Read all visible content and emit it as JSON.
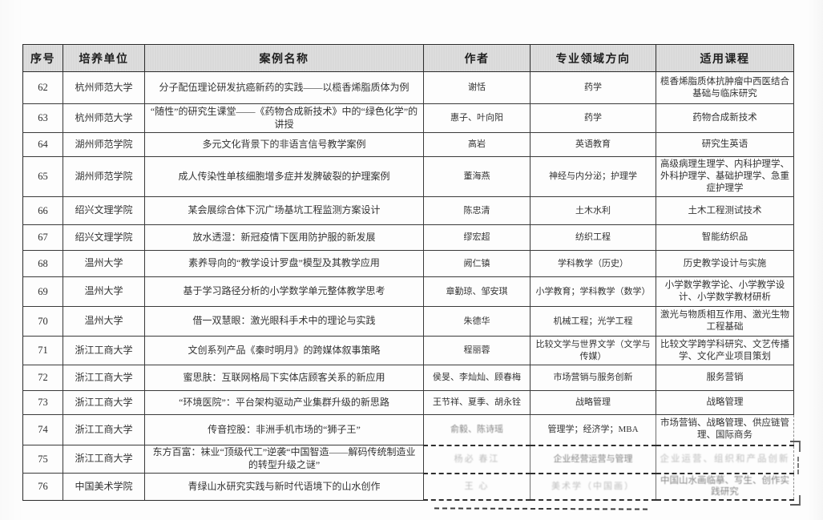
{
  "table": {
    "columns": [
      "序号",
      "培养单位",
      "案例名称",
      "作者",
      "专业领域方向",
      "适用课程"
    ],
    "rows": [
      {
        "num": "62",
        "unit": "杭州师范大学",
        "name": "分子配伍理论研发抗癌新药的实践——以榄香烯脂质体为例",
        "author": "谢恬",
        "field": "药学",
        "courses": "榄香烯脂质体抗肿瘤中西医结合基础与临床研究"
      },
      {
        "num": "63",
        "unit": "杭州师范大学",
        "name": "“随性”的研究生课堂——《药物合成新技术》中的“绿色化学”的讲授",
        "author": "惠子、叶向阳",
        "field": "药学",
        "courses": "药物合成新技术"
      },
      {
        "num": "64",
        "unit": "湖州师范学院",
        "name": "多元文化背景下的非语言信号教学案例",
        "author": "高岩",
        "field": "英语教育",
        "courses": "研究生英语"
      },
      {
        "num": "65",
        "unit": "湖州师范学院",
        "name": "成人传染性单核细胞增多症并发脾破裂的护理案例",
        "author": "董海燕",
        "field": "神经与内分泌；护理学",
        "courses": "高级病理生理学、内科护理学、外科护理学、基础护理学、急重症护理学"
      },
      {
        "num": "66",
        "unit": "绍兴文理学院",
        "name": "某会展综合体下沉广场基坑工程监测方案设计",
        "author": "陈忠清",
        "field": "土木水利",
        "courses": "土木工程测试技术"
      },
      {
        "num": "67",
        "unit": "绍兴文理学院",
        "name": "放水透湿：新冠疫情下医用防护服的新发展",
        "author": "缪宏超",
        "field": "纺织工程",
        "courses": "智能纺织品"
      },
      {
        "num": "68",
        "unit": "温州大学",
        "name": "素养导向的“教学设计罗盘”模型及其教学应用",
        "author": "阙仁镇",
        "field": "学科教学（历史）",
        "courses": "历史教学设计与实施"
      },
      {
        "num": "69",
        "unit": "温州大学",
        "name": "基于学习路径分析的小学数学单元整体教学思考",
        "author": "章勤琼、邹安琪",
        "field": "小学教育；学科教学（数学）",
        "courses": "小学数学教学论、小学教学设计、小学数学教材研析"
      },
      {
        "num": "70",
        "unit": "温州大学",
        "name": "借一双慧眼：激光眼科手术中的理论与实践",
        "author": "朱德华",
        "field": "机械工程；光学工程",
        "courses": "激光与物质相互作用、激光生物工程基础"
      },
      {
        "num": "71",
        "unit": "浙江工商大学",
        "name": "文创系列产品《秦时明月》的跨媒体叙事策略",
        "author": "程丽蓉",
        "field": "比较文学与世界文学（文学与传媒）",
        "courses": "比较文学跨学科研究、文艺传播学、文化产业项目策划"
      },
      {
        "num": "72",
        "unit": "浙江工商大学",
        "name": "蜜思肤：互联网格局下实体店顾客关系的新应用",
        "author": "侯旻、李灿灿、顾春梅",
        "field": "市场营销与服务创新",
        "courses": "服务营销"
      },
      {
        "num": "73",
        "unit": "浙江工商大学",
        "name": "“环境医院”：平台架构驱动产业集群升级的新思路",
        "author": "王节祥、夏季、胡永铨",
        "field": "战略管理",
        "courses": "战略管理"
      },
      {
        "num": "74",
        "unit": "浙江工商大学",
        "name": "传音控股：非洲手机市场的“狮子王”",
        "author": "俞毅、陈诗瑶",
        "field": "管理学；经济学；MBA",
        "courses": "市场营销、战略管理、供应链管理、国际商务"
      },
      {
        "num": "75",
        "unit": "浙江工商大学",
        "name": "东方百富：袜业“顶级代工”逆袭“中国智造——解码传统制造业的转型升级之谜”",
        "author": "杨必 春江",
        "field": "企业经营运营与管理",
        "courses": "企业运营、组织和产品创新"
      },
      {
        "num": "76",
        "unit": "中国美术学院",
        "name": "青绿山水研究实践与新时代语境下的山水创作",
        "author": "王 心",
        "field": "美术学（中国画）",
        "courses": "中国山水画临摹、写生、创作实践研究"
      }
    ]
  }
}
